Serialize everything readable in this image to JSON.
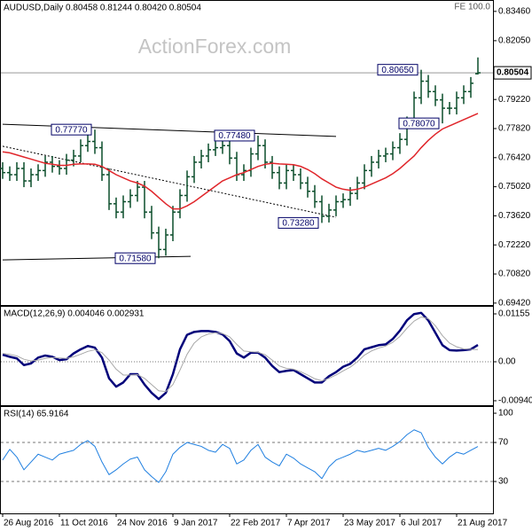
{
  "chart_data": [
    {
      "type": "ohlc",
      "title": "AUDUSD,Daily 0.80458 0.81244 0.80420 0.80504",
      "corner_label": "FE 100.0",
      "watermark": "ActionForex.com",
      "color": "#0b4d2a",
      "categories": [
        "26 Aug 2016",
        null,
        null,
        null,
        null,
        null,
        null,
        null,
        "11 Oct 2016",
        null,
        null,
        null,
        null,
        null,
        null,
        null,
        "24 Nov 2016",
        null,
        null,
        null,
        null,
        null,
        null,
        null,
        "9 Jan 2017",
        null,
        null,
        null,
        null,
        null,
        null,
        null,
        "22 Feb 2017",
        null,
        null,
        null,
        null,
        null,
        null,
        null,
        "7 Apr 2017",
        null,
        null,
        null,
        null,
        null,
        null,
        null,
        "23 May 2017",
        null,
        null,
        null,
        null,
        null,
        null,
        null,
        "6 Jul 2017",
        null,
        null,
        null,
        null,
        null,
        null,
        null,
        "21 Aug 2017",
        null,
        null,
        null
      ],
      "open": [
        0.759,
        0.757,
        0.756,
        0.759,
        0.753,
        0.756,
        0.758,
        0.762,
        0.76,
        0.759,
        0.763,
        0.765,
        0.77,
        0.772,
        0.769,
        0.756,
        0.742,
        0.738,
        0.743,
        0.746,
        0.75,
        0.738,
        0.728,
        0.72,
        0.727,
        0.738,
        0.746,
        0.755,
        0.762,
        0.765,
        0.768,
        0.769,
        0.77,
        0.764,
        0.756,
        0.758,
        0.766,
        0.77,
        0.762,
        0.757,
        0.752,
        0.758,
        0.756,
        0.752,
        0.748,
        0.743,
        0.736,
        0.739,
        0.743,
        0.744,
        0.747,
        0.752,
        0.758,
        0.762,
        0.765,
        0.766,
        0.769,
        0.773,
        0.781,
        0.793,
        0.801,
        0.796,
        0.792,
        0.788,
        0.788,
        0.793,
        0.796,
        0.80458
      ],
      "high": [
        0.762,
        0.76,
        0.762,
        0.762,
        0.759,
        0.761,
        0.765,
        0.765,
        0.763,
        0.766,
        0.768,
        0.773,
        0.775,
        0.7777,
        0.772,
        0.759,
        0.745,
        0.746,
        0.749,
        0.753,
        0.753,
        0.741,
        0.731,
        0.73,
        0.741,
        0.749,
        0.758,
        0.765,
        0.768,
        0.771,
        0.772,
        0.773,
        0.773,
        0.767,
        0.761,
        0.769,
        0.7748,
        0.773,
        0.765,
        0.76,
        0.761,
        0.761,
        0.759,
        0.755,
        0.751,
        0.746,
        0.742,
        0.746,
        0.747,
        0.75,
        0.755,
        0.761,
        0.765,
        0.768,
        0.769,
        0.772,
        0.776,
        0.784,
        0.796,
        0.8065,
        0.804,
        0.799,
        0.795,
        0.791,
        0.796,
        0.799,
        0.803,
        0.81244
      ],
      "low": [
        0.754,
        0.753,
        0.753,
        0.75,
        0.75,
        0.753,
        0.755,
        0.757,
        0.756,
        0.756,
        0.76,
        0.762,
        0.767,
        0.766,
        0.753,
        0.739,
        0.735,
        0.735,
        0.74,
        0.743,
        0.735,
        0.725,
        0.7158,
        0.717,
        0.724,
        0.735,
        0.743,
        0.752,
        0.759,
        0.762,
        0.765,
        0.766,
        0.761,
        0.753,
        0.753,
        0.755,
        0.763,
        0.759,
        0.754,
        0.749,
        0.749,
        0.753,
        0.749,
        0.745,
        0.74,
        0.7328,
        0.733,
        0.736,
        0.74,
        0.741,
        0.744,
        0.749,
        0.755,
        0.759,
        0.762,
        0.763,
        0.766,
        0.77,
        0.778,
        0.79,
        0.793,
        0.789,
        0.7807,
        0.785,
        0.785,
        0.79,
        0.793,
        0.8042
      ],
      "close": [
        0.757,
        0.756,
        0.759,
        0.753,
        0.756,
        0.758,
        0.762,
        0.76,
        0.759,
        0.763,
        0.765,
        0.77,
        0.772,
        0.769,
        0.756,
        0.742,
        0.738,
        0.743,
        0.746,
        0.75,
        0.738,
        0.728,
        0.72,
        0.727,
        0.738,
        0.746,
        0.755,
        0.762,
        0.765,
        0.768,
        0.769,
        0.77,
        0.764,
        0.756,
        0.758,
        0.766,
        0.77,
        0.762,
        0.757,
        0.752,
        0.758,
        0.756,
        0.752,
        0.748,
        0.743,
        0.736,
        0.739,
        0.743,
        0.744,
        0.747,
        0.752,
        0.758,
        0.762,
        0.765,
        0.766,
        0.769,
        0.773,
        0.781,
        0.793,
        0.801,
        0.796,
        0.792,
        0.788,
        0.788,
        0.793,
        0.796,
        0.8,
        0.80504
      ],
      "ma": {
        "color": "#e0262b",
        "values": [
          0.767,
          0.7665,
          0.7655,
          0.7645,
          0.7635,
          0.7625,
          0.7615,
          0.761,
          0.7605,
          0.7605,
          0.761,
          0.7612,
          0.7612,
          0.761,
          0.76,
          0.758,
          0.756,
          0.7545,
          0.753,
          0.752,
          0.7505,
          0.748,
          0.745,
          0.742,
          0.7395,
          0.7395,
          0.741,
          0.743,
          0.7455,
          0.748,
          0.7505,
          0.753,
          0.7545,
          0.756,
          0.757,
          0.7585,
          0.76,
          0.761,
          0.7615,
          0.7612,
          0.761,
          0.7608,
          0.76,
          0.7585,
          0.7565,
          0.754,
          0.752,
          0.75,
          0.749,
          0.7485,
          0.749,
          0.75,
          0.7515,
          0.753,
          0.7545,
          0.7565,
          0.759,
          0.762,
          0.765,
          0.769,
          0.7725,
          0.7755,
          0.778,
          0.7795,
          0.781,
          0.7825,
          0.784,
          0.7855
        ]
      },
      "ylim": [
        0.6937,
        0.8388
      ],
      "yticks": [
        {
          "value": 0.6942,
          "label": "0.69420"
        },
        {
          "value": 0.7082,
          "label": "0.70820"
        },
        {
          "value": 0.7222,
          "label": "0.72220"
        },
        {
          "value": 0.7362,
          "label": "0.73620"
        },
        {
          "value": 0.7502,
          "label": "0.75020"
        },
        {
          "value": 0.7642,
          "label": "0.76420"
        },
        {
          "value": 0.7782,
          "label": "0.77820"
        },
        {
          "value": 0.7922,
          "label": "0.79220"
        },
        {
          "value": 0.8205,
          "label": "0.82050"
        },
        {
          "value": 0.8346,
          "label": "0.83460"
        }
      ],
      "last_price": 0.80504,
      "annotations": [
        {
          "x": 13,
          "value": 0.7777,
          "label": "0.77770"
        },
        {
          "x": 36,
          "value": 0.7748,
          "label": "0.77480"
        },
        {
          "x": 22,
          "value": 0.7158,
          "label": "0.71580"
        },
        {
          "x": 45,
          "value": 0.7328,
          "label": "0.73280"
        },
        {
          "x": 59,
          "value": 0.8065,
          "label": "0.80650"
        },
        {
          "x": 62,
          "value": 0.7807,
          "label": "0.78070"
        }
      ],
      "trendlines": [
        {
          "x": [
            0,
            47
          ],
          "y": [
            0.7803,
            0.7744
          ],
          "dashed": false
        },
        {
          "x": [
            0,
            26.5
          ],
          "y": [
            0.715,
            0.7167
          ],
          "dashed": false
        },
        {
          "x": [
            0,
            47
          ],
          "y": [
            0.7697,
            0.7355
          ],
          "dashed": true
        }
      ]
    },
    {
      "type": "line",
      "title": "MACD(12,26,9) 0.004046 0.002931",
      "series": [
        {
          "color": "#00007a",
          "width": 2.5,
          "values": [
            0.0017,
            0.0012,
            0.0008,
            -0.0008,
            -0.0004,
            0.001,
            0.0015,
            0.0012,
            0.0004,
            0.0006,
            0.002,
            0.003,
            0.0038,
            0.0034,
            0.001,
            -0.004,
            -0.006,
            -0.005,
            -0.003,
            -0.003,
            -0.0055,
            -0.0075,
            -0.009,
            -0.0075,
            -0.003,
            0.003,
            0.0065,
            0.0072,
            0.0074,
            0.0074,
            0.0072,
            0.0066,
            0.005,
            0.002,
            0.001,
            0.0022,
            0.0022,
            0.001,
            -0.001,
            -0.0025,
            -0.0022,
            -0.002,
            -0.003,
            -0.004,
            -0.005,
            -0.005,
            -0.0035,
            -0.0025,
            -0.0012,
            -0.0005,
            0.001,
            0.003,
            0.0035,
            0.004,
            0.0042,
            0.0055,
            0.0075,
            0.01,
            0.0115,
            0.0118,
            0.01,
            0.007,
            0.004,
            0.0028,
            0.0027,
            0.0028,
            0.003,
            0.004046
          ]
        },
        {
          "color": "#a8a8a8",
          "width": 1,
          "values": [
            0.002,
            0.0018,
            0.0014,
            0.0006,
            0.0002,
            0.0004,
            0.0008,
            0.001,
            0.0009,
            0.0008,
            0.0012,
            0.0018,
            0.0025,
            0.0029,
            0.0022,
            0.0004,
            -0.0018,
            -0.0032,
            -0.0032,
            -0.0031,
            -0.004,
            -0.0055,
            -0.007,
            -0.0072,
            -0.0055,
            -0.002,
            0.0018,
            0.0045,
            0.006,
            0.0067,
            0.007,
            0.0068,
            0.006,
            0.0042,
            0.0026,
            0.0024,
            0.0023,
            0.0017,
            0.0004,
            -0.001,
            -0.0016,
            -0.0018,
            -0.0024,
            -0.0032,
            -0.0041,
            -0.0046,
            -0.004,
            -0.0032,
            -0.0022,
            -0.0013,
            0,
            0.0016,
            0.0026,
            0.0033,
            0.0038,
            0.0047,
            0.0061,
            0.0081,
            0.0098,
            0.0108,
            0.0104,
            0.0087,
            0.0063,
            0.0045,
            0.0036,
            0.0031,
            0.003,
            0.002931
          ]
        }
      ],
      "ylim": [
        -0.01027,
        0.01326
      ],
      "yticks": [
        -0.009408,
        {
          "value": 0,
          "label": "0.00"
        },
        0.01155
      ],
      "levels": [
        0
      ]
    },
    {
      "type": "line",
      "title": "RSI(14) 65.9164",
      "series": [
        {
          "color": "#1f7fe0",
          "width": 1,
          "values": [
            52,
            63,
            55,
            42,
            50,
            58,
            55,
            52,
            58,
            60,
            62,
            68,
            72,
            66,
            50,
            37,
            42,
            48,
            53,
            55,
            42,
            35,
            29,
            40,
            58,
            65,
            70,
            68,
            66,
            62,
            60,
            68,
            64,
            48,
            52,
            62,
            68,
            55,
            50,
            46,
            58,
            54,
            48,
            44,
            40,
            33,
            45,
            52,
            55,
            58,
            62,
            60,
            62,
            64,
            62,
            66,
            71,
            78,
            83,
            80,
            65,
            55,
            48,
            55,
            60,
            58,
            62,
            65.9164
          ]
        }
      ],
      "ylim": [
        -1.8,
        105.5
      ],
      "yticks": [
        30,
        70,
        100
      ],
      "levels": [
        30,
        70
      ]
    }
  ]
}
